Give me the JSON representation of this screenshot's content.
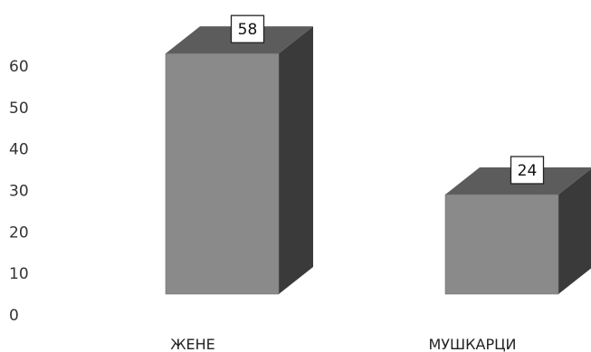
{
  "chart_data": {
    "type": "bar",
    "style": "3d",
    "categories": [
      "ЖЕНЕ",
      "МУШКАРЦИ"
    ],
    "values": [
      58,
      24
    ],
    "yticks": [
      0,
      10,
      20,
      30,
      40,
      50,
      60
    ],
    "ylim": [
      0,
      60
    ],
    "grid": false,
    "legend": "none",
    "colors": {
      "front": "#8a8a8a",
      "side": "#3a3a3a",
      "top": "#5c5c5c",
      "label_box": "#ffffff"
    }
  }
}
